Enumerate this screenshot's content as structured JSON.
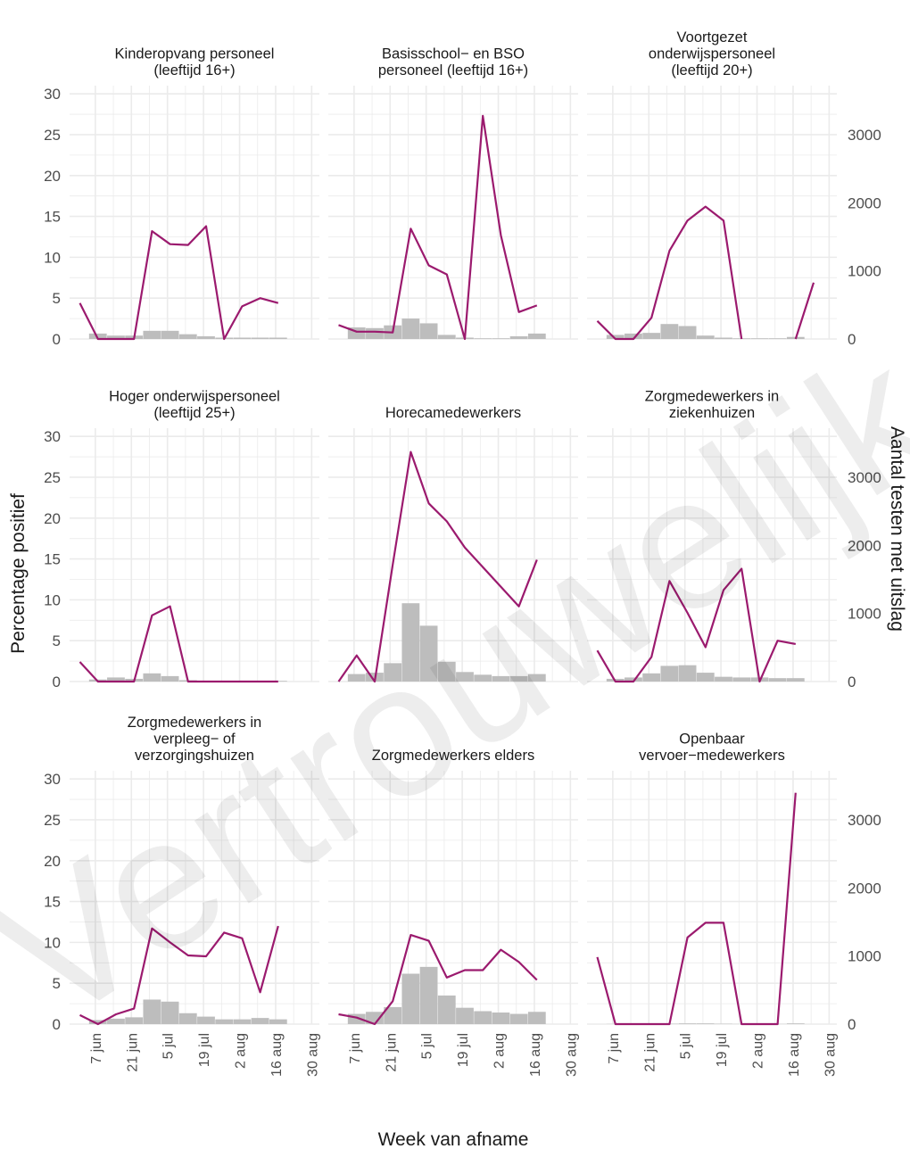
{
  "chart_data": {
    "type": "bar+line",
    "xlabel": "Week van afname",
    "ylabel_left": "Percentage positief",
    "ylabel_right": "Aantal testen met uitslag",
    "x_ticks": [
      "7 jun",
      "21 jun",
      "5 jul",
      "19 jul",
      "2 aug",
      "16 aug",
      "30 aug"
    ],
    "weeks": [
      "2020-06-01",
      "2020-06-08",
      "2020-06-15",
      "2020-06-22",
      "2020-06-29",
      "2020-07-06",
      "2020-07-13",
      "2020-07-20",
      "2020-07-27",
      "2020-08-03",
      "2020-08-10",
      "2020-08-17",
      "2020-08-24"
    ],
    "ylim_left": [
      0,
      31
    ],
    "yticks_left": [
      0,
      5,
      10,
      15,
      20,
      25,
      30
    ],
    "ylim_right": [
      0,
      3720
    ],
    "yticks_right": [
      0,
      1000,
      2000,
      3000
    ],
    "colors": {
      "line": "#9b1a6e",
      "bar": "#bdbdbd",
      "grid": "#ebebeb"
    },
    "watermark": "Vertrouwelijk",
    "panels": [
      {
        "title": [
          "Kinderopvang personeel",
          "(leeftijd 16+)"
        ],
        "percentage_positief": [
          4.4,
          0.0,
          0.0,
          0.0,
          13.2,
          11.6,
          11.5,
          13.8,
          0.0,
          4.0,
          5.0,
          4.4,
          null
        ],
        "aantal_testen": [
          null,
          80,
          50,
          50,
          120,
          120,
          70,
          40,
          20,
          20,
          20,
          20,
          null
        ]
      },
      {
        "title": [
          "Basisschool− en BSO",
          "personeel (leeftijd 16+)"
        ],
        "percentage_positief": [
          1.7,
          0.9,
          0.9,
          0.8,
          13.5,
          9.0,
          7.9,
          0.0,
          27.3,
          12.7,
          3.3,
          4.1,
          null
        ],
        "aantal_testen": [
          null,
          170,
          160,
          200,
          300,
          230,
          60,
          20,
          10,
          10,
          40,
          80,
          null
        ]
      },
      {
        "title": [
          "Voortgezet",
          "onderwijspersoneel",
          "(leeftijd 20+)"
        ],
        "percentage_positief": [
          2.2,
          0.0,
          0.0,
          2.6,
          10.8,
          14.5,
          16.2,
          14.5,
          0.0,
          null,
          null,
          0.0,
          6.9
        ],
        "aantal_testen": [
          null,
          60,
          80,
          90,
          220,
          190,
          50,
          20,
          10,
          10,
          10,
          30,
          null
        ]
      },
      {
        "title": [
          "Hoger onderwijspersoneel",
          "(leeftijd 25+)"
        ],
        "percentage_positief": [
          2.4,
          0.0,
          0.0,
          0.0,
          8.1,
          9.2,
          0.0,
          0.0,
          0.0,
          0.0,
          0.0,
          0.0,
          null
        ],
        "aantal_testen": [
          null,
          30,
          60,
          40,
          120,
          80,
          20,
          10,
          10,
          10,
          10,
          10,
          null
        ]
      },
      {
        "title": [
          "Horecamedewerkers"
        ],
        "percentage_positief": [
          0.0,
          3.2,
          0.0,
          14.3,
          28.1,
          21.8,
          19.6,
          16.4,
          14.0,
          11.6,
          9.2,
          14.9,
          null
        ],
        "aantal_testen": [
          null,
          110,
          130,
          270,
          1150,
          820,
          290,
          140,
          100,
          80,
          80,
          110,
          null
        ]
      },
      {
        "title": [
          "Zorgmedewerkers in",
          "ziekenhuizen"
        ],
        "percentage_positief": [
          3.8,
          0.0,
          0.0,
          3.0,
          12.3,
          8.4,
          4.2,
          11.2,
          13.8,
          0.0,
          5.0,
          4.6,
          null
        ],
        "aantal_testen": [
          null,
          40,
          60,
          120,
          230,
          240,
          130,
          70,
          60,
          60,
          50,
          50,
          null
        ]
      },
      {
        "title": [
          "Zorgmedewerkers in",
          "verpleeg− of",
          "verzorgingshuizen"
        ],
        "percentage_positief": [
          1.1,
          0.0,
          1.2,
          1.9,
          11.7,
          10.0,
          8.4,
          8.3,
          11.2,
          10.5,
          3.9,
          12.0,
          null
        ],
        "aantal_testen": [
          null,
          60,
          80,
          100,
          360,
          330,
          160,
          110,
          70,
          70,
          90,
          70,
          null
        ]
      },
      {
        "title": [
          "Zorgmedewerkers elders"
        ],
        "percentage_positief": [
          1.2,
          0.8,
          0.0,
          2.8,
          10.9,
          10.2,
          5.7,
          6.6,
          6.6,
          9.1,
          7.6,
          5.4,
          null
        ],
        "aantal_testen": [
          null,
          150,
          180,
          250,
          740,
          840,
          420,
          240,
          190,
          170,
          150,
          180,
          null
        ]
      },
      {
        "title": [
          "Openbaar",
          "vervoer−medewerkers"
        ],
        "percentage_positief": [
          8.2,
          0.0,
          0.0,
          0.0,
          0.0,
          10.6,
          12.4,
          12.4,
          0.0,
          0.0,
          0.0,
          28.3,
          null
        ],
        "aantal_testen": [
          null,
          2,
          2,
          2,
          5,
          10,
          10,
          5,
          2,
          2,
          2,
          10,
          null
        ]
      }
    ]
  }
}
